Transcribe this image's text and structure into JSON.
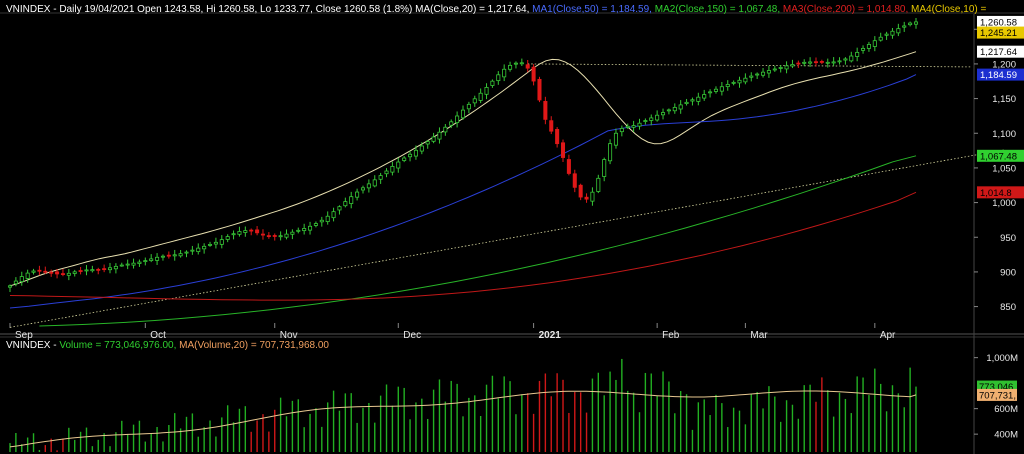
{
  "price_header": {
    "prefix": "VNINDEX - Daily 19/04/2021 Open 1243.58, Hi 1260.58, Lo 1233.77, Close 1260.58 (1.8%)",
    "ma": "MA(Close,20) = 1,217.64,",
    "ma1": "MA1(Close,50) = 1,184.59,",
    "ma2": "MA2(Close,150) = 1,067.48,",
    "ma3": "MA3(Close,200) = 1,014.80,",
    "ma4": "MA4(Close,10) ="
  },
  "volume_header": {
    "prefix": "VNINDEX - ",
    "vol": "Volume = 773,046,976.00,",
    "vma": "MA(Volume,20) = 707,731,968.00"
  },
  "colors": {
    "bg": "#000000",
    "up": "#37c837",
    "down": "#e01818",
    "ma20": "#e8e0b0",
    "ma50": "#2a3fd6",
    "ma150": "#28b428",
    "ma200": "#c01818",
    "ma10": "#d8b840",
    "trend": "#d8d8a0",
    "vol_up": "#22b022",
    "vol_down": "#d01818",
    "vma": "#e8c890",
    "grid": "#2a2a2a"
  },
  "value_tags": [
    {
      "value": 1260.58,
      "label": "1,260.58",
      "bg": "#ffffff",
      "fg": "#000000"
    },
    {
      "value": 1245.21,
      "label": "1,245.21",
      "bg": "#e8c800",
      "fg": "#000000"
    },
    {
      "value": 1217.64,
      "label": "1,217.64",
      "bg": "#ffffff",
      "fg": "#000000"
    },
    {
      "value": 1184.59,
      "label": "1,184.59",
      "bg": "#1c2fd0",
      "fg": "#ffffff"
    },
    {
      "value": 1067.48,
      "label": "1,067.48",
      "bg": "#30d030",
      "fg": "#000000"
    },
    {
      "value": 1014.8,
      "label": "1,014.8",
      "bg": "#d01818",
      "fg": "#000000"
    }
  ],
  "volume_tags": [
    {
      "value": 773046976,
      "label": "773,046,",
      "bg": "#30c030",
      "fg": "#000000"
    },
    {
      "value": 707731968,
      "label": "707,731,",
      "bg": "#f0b070",
      "fg": "#000000"
    }
  ],
  "chart_data": [
    {
      "type": "candlestick",
      "title": "VNINDEX - Daily",
      "ylim": [
        822,
        1272
      ],
      "yticks": [
        850,
        900,
        950,
        1000,
        1050,
        1100,
        1150,
        1200,
        1250
      ],
      "ytick_labels": [
        "850",
        "900",
        "950",
        "1,000",
        "1,050",
        "1,100",
        "1,150",
        "1,200",
        "1,250"
      ],
      "months": [
        {
          "label": "Sep",
          "index": 0,
          "bold": false
        },
        {
          "label": "Oct",
          "index": 23,
          "bold": false
        },
        {
          "label": "Nov",
          "index": 45,
          "bold": false
        },
        {
          "label": "Dec",
          "index": 66,
          "bold": false
        },
        {
          "label": "2021",
          "index": 89,
          "bold": true
        },
        {
          "label": "Feb",
          "index": 110,
          "bold": false
        },
        {
          "label": "Mar",
          "index": 125,
          "bold": false
        },
        {
          "label": "Apr",
          "index": 147,
          "bold": false
        }
      ],
      "close": [
        880.0,
        886.8,
        893.3,
        898.3,
        901.3,
        902.1,
        900.8,
        898.6,
        897.1,
        896.7,
        898.0,
        900.1,
        901.9,
        902.9,
        903.3,
        903.5,
        904.3,
        906.0,
        908.0,
        909.9,
        911.3,
        912.6,
        914.2,
        916.3,
        918.8,
        921.1,
        922.7,
        923.8,
        924.7,
        926.3,
        928.6,
        931.4,
        934.3,
        936.9,
        939.7,
        942.7,
        946.6,
        951.0,
        955.1,
        958.3,
        959.6,
        958.9,
        956.4,
        953.5,
        951.5,
        951.1,
        952.2,
        954.5,
        957.3,
        960.0,
        962.7,
        965.8,
        969.7,
        974.5,
        980.3,
        986.9,
        994.1,
        1001.4,
        1008.5,
        1015.2,
        1021.3,
        1027.0,
        1032.8,
        1038.9,
        1045.5,
        1052.2,
        1058.5,
        1064.3,
        1069.7,
        1075.4,
        1081.6,
        1088.0,
        1094.6,
        1101.5,
        1108.7,
        1116.5,
        1124.9,
        1133.4,
        1141.7,
        1149.7,
        1157.7,
        1166.1,
        1175.1,
        1184.3,
        1192.3,
        1197.9,
        1201.1,
        1201.6,
        1193.9,
        1175.3,
        1148.0,
        1120.0,
        1103.0,
        1085.0,
        1065.0,
        1042.0,
        1022.0,
        1008.0,
        1005.0,
        1015.0,
        1035.0,
        1062.0,
        1085.0,
        1100.0,
        1107.0,
        1110.0,
        1111.1,
        1114.5,
        1118.3,
        1122.1,
        1126.0,
        1129.9,
        1133.7,
        1137.3,
        1140.9,
        1144.6,
        1148.3,
        1152.0,
        1155.8,
        1159.7,
        1163.5,
        1167.1,
        1170.4,
        1173.4,
        1176.4,
        1179.4,
        1182.5,
        1185.4,
        1188.1,
        1190.5,
        1192.7,
        1194.9,
        1197.2,
        1199.3,
        1201.1,
        1202.3,
        1202.8,
        1202.6,
        1202.3,
        1202.3,
        1202.9,
        1204.4,
        1207.2,
        1211.4,
        1216.6,
        1222.4,
        1228.1,
        1233.5,
        1238.5,
        1243.0,
        1247.1,
        1250.9,
        1254.8,
        1258.9,
        1260.58
      ],
      "ma_lines": [
        {
          "name": "MA(Close,20)",
          "color_key": "ma20",
          "start": 0,
          "values": [
            880.0,
            882.6,
            885.7,
            889.2,
            892.7,
            896.1,
            899.2,
            901.9,
            904.4,
            906.8,
            909.3,
            911.9,
            914.4,
            916.8,
            919.0,
            920.9,
            922.6,
            924.4,
            926.3,
            928.5,
            930.9,
            933.3,
            935.7,
            938.1,
            940.5,
            942.9,
            945.3,
            947.7,
            950.1,
            952.5,
            954.9,
            957.4,
            960.0,
            962.6,
            965.2,
            967.9,
            970.7,
            973.6,
            976.5,
            979.4,
            982.3,
            985.2,
            988.2,
            991.3,
            994.5,
            997.8,
            1001.3,
            1004.9,
            1008.6,
            1012.4,
            1016.3,
            1020.3,
            1024.4,
            1028.6,
            1032.9,
            1037.3,
            1041.8,
            1046.4,
            1051.1,
            1055.9,
            1060.8,
            1065.8,
            1070.9,
            1076.1,
            1081.4,
            1086.8,
            1092.3,
            1097.9,
            1103.6,
            1109.4,
            1115.3,
            1121.3,
            1127.4,
            1133.6,
            1139.9,
            1146.3,
            1152.8,
            1159.4,
            1166.1,
            1172.9,
            1179.8,
            1186.8,
            1193.9,
            1200.0,
            1204.5,
            1206.5,
            1205.9,
            1202.9,
            1197.7,
            1190.6,
            1182.0,
            1172.2,
            1161.6,
            1150.5,
            1139.2,
            1128.1,
            1117.5,
            1107.7,
            1099.1,
            1092.1,
            1087.2,
            1084.8,
            1085.1,
            1087.7,
            1091.9,
            1097.2,
            1103.1,
            1109.2,
            1115.1,
            1120.6,
            1125.6,
            1130.1,
            1134.3,
            1138.1,
            1141.8,
            1145.3,
            1148.8,
            1152.3,
            1155.8,
            1159.3,
            1162.6,
            1165.8,
            1168.7,
            1171.4,
            1173.9,
            1176.2,
            1178.4,
            1180.5,
            1182.5,
            1184.5,
            1186.5,
            1188.5,
            1190.6,
            1192.9,
            1195.3,
            1197.8,
            1200.4,
            1203.1,
            1205.9,
            1208.8,
            1211.7,
            1214.6,
            1217.64
          ]
        },
        {
          "name": "MA1(Close,50)",
          "color_key": "ma50",
          "start": 0,
          "values": [
            848.0,
            849.2,
            850.6,
            852.1,
            853.7,
            855.3,
            856.8,
            858.3,
            859.8,
            861.4,
            863.1,
            864.9,
            866.8,
            868.8,
            870.9,
            873.1,
            875.4,
            877.8,
            880.3,
            882.9,
            885.6,
            888.4,
            891.3,
            894.3,
            897.4,
            900.6,
            903.9,
            907.3,
            910.8,
            914.4,
            918.1,
            921.9,
            925.8,
            929.8,
            933.9,
            938.1,
            942.4,
            946.8,
            951.3,
            955.9,
            960.6,
            965.4,
            970.3,
            975.3,
            980.4,
            985.6,
            990.9,
            996.3,
            1001.8,
            1007.4,
            1013.1,
            1018.9,
            1024.8,
            1030.8,
            1036.9,
            1043.1,
            1049.4,
            1055.8,
            1062.3,
            1068.9,
            1075.6,
            1082.4,
            1089.3,
            1096.3,
            1103.4,
            1106.0,
            1108.1,
            1109.9,
            1111.4,
            1112.6,
            1113.6,
            1114.4,
            1115.1,
            1115.8,
            1116.5,
            1117.3,
            1118.2,
            1119.3,
            1120.6,
            1122.1,
            1123.8,
            1125.7,
            1127.8,
            1130.1,
            1132.6,
            1135.3,
            1138.2,
            1141.3,
            1144.6,
            1148.1,
            1151.8,
            1155.7,
            1159.8,
            1164.1,
            1168.6,
            1173.3,
            1178.2,
            1184.59
          ]
        },
        {
          "name": "MA2(Close,150)",
          "color_key": "ma150",
          "start": 5,
          "values": [
            822.0,
            823.0,
            824.3,
            825.9,
            827.8,
            830.0,
            832.5,
            835.3,
            838.4,
            841.8,
            845.5,
            849.5,
            853.8,
            858.4,
            863.3,
            868.5,
            874.0,
            879.8,
            885.9,
            892.3,
            899.0,
            906.0,
            913.3,
            920.9,
            928.8,
            937.0,
            945.5,
            954.3,
            963.4,
            972.8,
            982.5,
            992.5,
            1002.8,
            1013.4,
            1024.3,
            1035.5,
            1047.0,
            1058.8,
            1067.48
          ]
        },
        {
          "name": "MA3(Close,200)",
          "color_key": "ma200",
          "start": 0,
          "values": [
            866.0,
            865.5,
            865.0,
            864.4,
            863.8,
            863.2,
            862.6,
            862.0,
            861.4,
            860.8,
            860.3,
            859.9,
            859.6,
            859.4,
            859.3,
            859.4,
            859.7,
            860.2,
            861.0,
            862.0,
            863.3,
            864.9,
            866.8,
            869.0,
            871.5,
            874.3,
            877.4,
            880.8,
            884.5,
            888.5,
            892.8,
            897.4,
            902.3,
            907.5,
            913.0,
            918.8,
            924.9,
            931.3,
            938.0,
            945.0,
            952.3,
            959.9,
            967.8,
            976.0,
            984.5,
            993.3,
            1002.4,
            1014.8
          ]
        }
      ],
      "trendline": [
        {
          "index": 0,
          "value": 820
        },
        {
          "index": 169,
          "value": 1076
        }
      ],
      "hline": {
        "from_index": 88,
        "value": 1200
      }
    },
    {
      "type": "bar",
      "title": "Volume",
      "ylim": [
        260000000,
        1060000000
      ],
      "yticks": [
        400000000,
        600000000,
        1000000000
      ],
      "ytick_labels": [
        "400M",
        "600M",
        "1,000M"
      ],
      "last_volume": 773046976,
      "last_vma": 707731968
    }
  ]
}
